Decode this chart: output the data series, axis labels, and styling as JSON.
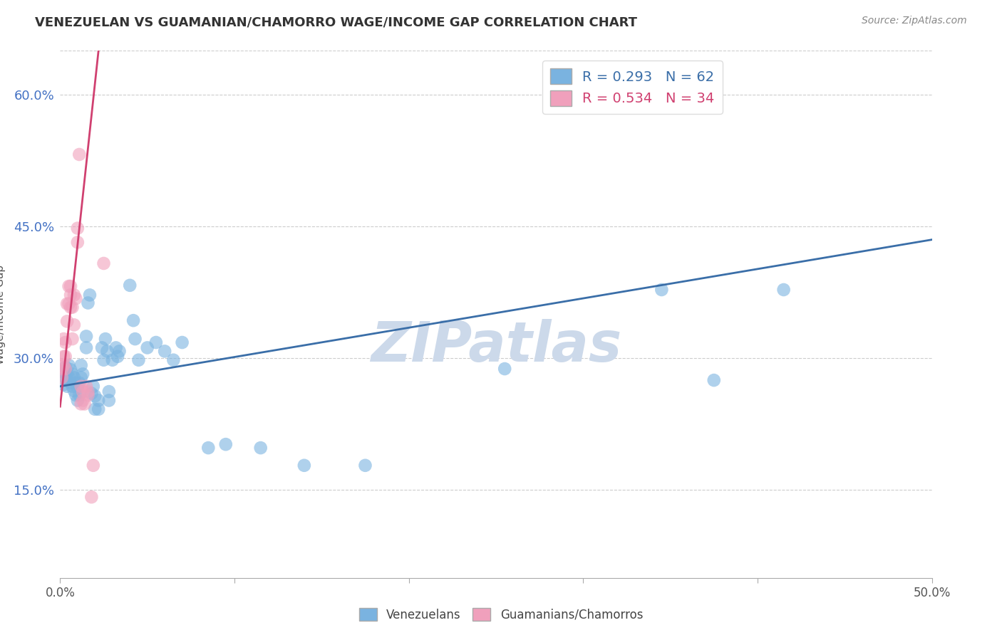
{
  "title": "VENEZUELAN VS GUAMANIAN/CHAMORRO WAGE/INCOME GAP CORRELATION CHART",
  "source": "Source: ZipAtlas.com",
  "ylabel": "Wage/Income Gap",
  "ytick_values": [
    0.15,
    0.3,
    0.45,
    0.6
  ],
  "xmin": 0.0,
  "xmax": 0.5,
  "ymin": 0.05,
  "ymax": 0.65,
  "legend1_color": "#7ab3e0",
  "legend2_color": "#f0a0bc",
  "trendline1_color": "#3a6ea8",
  "trendline2_color": "#d04070",
  "watermark": "ZIPatlas",
  "watermark_color": "#ccd9ea",
  "blue_R": 0.293,
  "blue_N": 62,
  "pink_R": 0.534,
  "pink_N": 34,
  "blue_trendline_x": [
    0.0,
    0.5
  ],
  "blue_trendline_y": [
    0.268,
    0.435
  ],
  "pink_trendline_x": [
    0.0,
    0.022
  ],
  "pink_trendline_y": [
    0.245,
    0.65
  ],
  "blue_dots": [
    [
      0.001,
      0.285
    ],
    [
      0.002,
      0.283
    ],
    [
      0.002,
      0.27
    ],
    [
      0.003,
      0.29
    ],
    [
      0.003,
      0.278
    ],
    [
      0.004,
      0.282
    ],
    [
      0.004,
      0.268
    ],
    [
      0.005,
      0.292
    ],
    [
      0.005,
      0.278
    ],
    [
      0.006,
      0.287
    ],
    [
      0.006,
      0.272
    ],
    [
      0.007,
      0.268
    ],
    [
      0.007,
      0.282
    ],
    [
      0.008,
      0.278
    ],
    [
      0.008,
      0.263
    ],
    [
      0.009,
      0.272
    ],
    [
      0.009,
      0.258
    ],
    [
      0.01,
      0.267
    ],
    [
      0.01,
      0.252
    ],
    [
      0.011,
      0.272
    ],
    [
      0.011,
      0.258
    ],
    [
      0.012,
      0.292
    ],
    [
      0.012,
      0.278
    ],
    [
      0.013,
      0.282
    ],
    [
      0.015,
      0.325
    ],
    [
      0.015,
      0.312
    ],
    [
      0.016,
      0.363
    ],
    [
      0.017,
      0.372
    ],
    [
      0.018,
      0.26
    ],
    [
      0.019,
      0.268
    ],
    [
      0.02,
      0.257
    ],
    [
      0.02,
      0.242
    ],
    [
      0.022,
      0.252
    ],
    [
      0.022,
      0.242
    ],
    [
      0.024,
      0.312
    ],
    [
      0.025,
      0.298
    ],
    [
      0.026,
      0.322
    ],
    [
      0.027,
      0.308
    ],
    [
      0.028,
      0.252
    ],
    [
      0.028,
      0.262
    ],
    [
      0.03,
      0.298
    ],
    [
      0.032,
      0.312
    ],
    [
      0.033,
      0.302
    ],
    [
      0.034,
      0.308
    ],
    [
      0.04,
      0.383
    ],
    [
      0.042,
      0.343
    ],
    [
      0.043,
      0.322
    ],
    [
      0.045,
      0.298
    ],
    [
      0.05,
      0.312
    ],
    [
      0.055,
      0.318
    ],
    [
      0.06,
      0.308
    ],
    [
      0.065,
      0.298
    ],
    [
      0.07,
      0.318
    ],
    [
      0.085,
      0.198
    ],
    [
      0.095,
      0.202
    ],
    [
      0.115,
      0.198
    ],
    [
      0.14,
      0.178
    ],
    [
      0.175,
      0.178
    ],
    [
      0.255,
      0.288
    ],
    [
      0.345,
      0.378
    ],
    [
      0.375,
      0.275
    ],
    [
      0.415,
      0.378
    ]
  ],
  "pink_dots": [
    [
      0.001,
      0.278
    ],
    [
      0.001,
      0.288
    ],
    [
      0.002,
      0.292
    ],
    [
      0.002,
      0.302
    ],
    [
      0.002,
      0.322
    ],
    [
      0.003,
      0.288
    ],
    [
      0.003,
      0.302
    ],
    [
      0.003,
      0.318
    ],
    [
      0.004,
      0.342
    ],
    [
      0.004,
      0.362
    ],
    [
      0.005,
      0.362
    ],
    [
      0.005,
      0.382
    ],
    [
      0.006,
      0.372
    ],
    [
      0.006,
      0.358
    ],
    [
      0.006,
      0.382
    ],
    [
      0.007,
      0.322
    ],
    [
      0.007,
      0.358
    ],
    [
      0.008,
      0.338
    ],
    [
      0.008,
      0.372
    ],
    [
      0.009,
      0.368
    ],
    [
      0.01,
      0.432
    ],
    [
      0.01,
      0.448
    ],
    [
      0.011,
      0.532
    ],
    [
      0.012,
      0.268
    ],
    [
      0.012,
      0.248
    ],
    [
      0.013,
      0.252
    ],
    [
      0.013,
      0.262
    ],
    [
      0.014,
      0.248
    ],
    [
      0.015,
      0.268
    ],
    [
      0.016,
      0.258
    ],
    [
      0.016,
      0.262
    ],
    [
      0.018,
      0.142
    ],
    [
      0.019,
      0.178
    ],
    [
      0.025,
      0.408
    ]
  ]
}
